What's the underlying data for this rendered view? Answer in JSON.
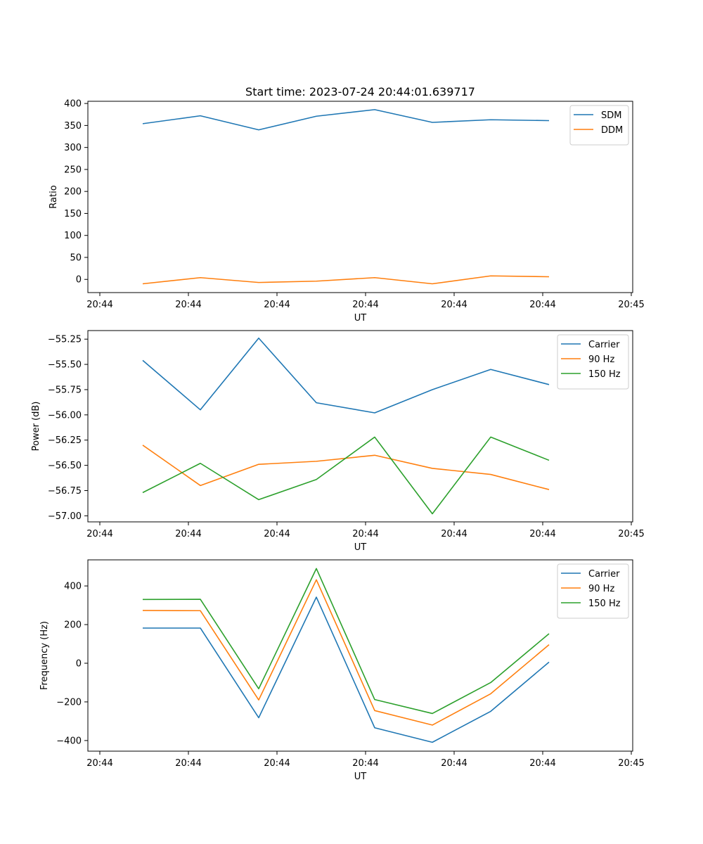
{
  "figure": {
    "title": "Start time: 2023-07-24 20:44:01.639717"
  },
  "chart_data": [
    {
      "type": "line",
      "title": "Start time: 2023-07-24 20:44:01.639717",
      "xlabel": "UT",
      "ylabel": "Ratio",
      "x_tick_labels": [
        "20:44",
        "20:44",
        "20:44",
        "20:44",
        "20:44",
        "20:44",
        "20:44",
        "20:45"
      ],
      "x": [
        1,
        2,
        3,
        4,
        5,
        6,
        7,
        8
      ],
      "xlim": [
        0,
        9
      ],
      "ylim": [
        -30,
        405
      ],
      "y_ticks": [
        0,
        50,
        100,
        150,
        200,
        250,
        300,
        350,
        400
      ],
      "y_tick_labels": [
        "0",
        "50",
        "100",
        "150",
        "200",
        "250",
        "300",
        "350",
        "400"
      ],
      "legend": "top-right",
      "series": [
        {
          "name": "SDM",
          "color": "#1f77b4",
          "values": [
            354,
            372,
            340,
            371,
            386,
            357,
            363,
            361
          ]
        },
        {
          "name": "DDM",
          "color": "#ff7f0e",
          "values": [
            -10,
            4,
            -7,
            -4,
            4,
            -10,
            8,
            6
          ]
        }
      ]
    },
    {
      "type": "line",
      "title": "",
      "xlabel": "UT",
      "ylabel": "Power (dB)",
      "x_tick_labels": [
        "20:44",
        "20:44",
        "20:44",
        "20:44",
        "20:44",
        "20:44",
        "20:44",
        "20:45"
      ],
      "x": [
        1,
        2,
        3,
        4,
        5,
        6,
        7,
        8
      ],
      "xlim": [
        0,
        9
      ],
      "ylim": [
        -57.06,
        -55.165
      ],
      "y_ticks": [
        -57.0,
        -56.75,
        -56.5,
        -56.25,
        -56.0,
        -55.75,
        -55.5,
        -55.25
      ],
      "y_tick_labels": [
        "−57.00",
        "−56.75",
        "−56.50",
        "−56.25",
        "−56.00",
        "−55.75",
        "−55.50",
        "−55.25"
      ],
      "legend": "top-right",
      "series": [
        {
          "name": "Carrier",
          "color": "#1f77b4",
          "values": [
            -55.46,
            -55.95,
            -55.24,
            -55.88,
            -55.98,
            -55.75,
            -55.55,
            -55.7
          ]
        },
        {
          "name": "90 Hz",
          "color": "#ff7f0e",
          "values": [
            -56.3,
            -56.7,
            -56.49,
            -56.46,
            -56.4,
            -56.53,
            -56.59,
            -56.74
          ]
        },
        {
          "name": "150 Hz",
          "color": "#2ca02c",
          "values": [
            -56.77,
            -56.48,
            -56.84,
            -56.64,
            -56.22,
            -56.98,
            -56.22,
            -56.45
          ]
        }
      ]
    },
    {
      "type": "line",
      "title": "",
      "xlabel": "UT",
      "ylabel": "Frequency (Hz)",
      "x_tick_labels": [
        "20:44",
        "20:44",
        "20:44",
        "20:44",
        "20:44",
        "20:44",
        "20:44",
        "20:45"
      ],
      "x": [
        1,
        2,
        3,
        4,
        5,
        6,
        7,
        8
      ],
      "xlim": [
        0,
        9
      ],
      "ylim": [
        -455,
        535
      ],
      "y_ticks": [
        -400,
        -200,
        0,
        200,
        400
      ],
      "y_tick_labels": [
        "−400",
        "−200",
        "0",
        "200",
        "400"
      ],
      "legend": "top-right",
      "series": [
        {
          "name": "Carrier",
          "color": "#1f77b4",
          "values": [
            182,
            182,
            -282,
            342,
            -334,
            -409,
            -249,
            6
          ]
        },
        {
          "name": "90 Hz",
          "color": "#ff7f0e",
          "values": [
            273,
            272,
            -190,
            432,
            -245,
            -320,
            -158,
            96
          ]
        },
        {
          "name": "150 Hz",
          "color": "#2ca02c",
          "values": [
            330,
            331,
            -132,
            490,
            -188,
            -260,
            -100,
            153
          ]
        }
      ]
    }
  ]
}
